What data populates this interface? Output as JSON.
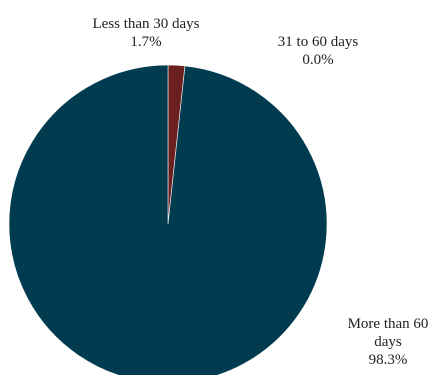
{
  "chart_data": {
    "type": "pie",
    "slices": [
      {
        "label_lines": [
          "Less than 30 days"
        ],
        "percent_label": "1.7%",
        "value": 1.7,
        "color": "#6b1f1f"
      },
      {
        "label_lines": [
          "31 to 60 days"
        ],
        "percent_label": "0.0%",
        "value": 0.0,
        "color": "#9e9e9e"
      },
      {
        "label_lines": [
          "More than 60",
          "days"
        ],
        "percent_label": "98.3%",
        "value": 98.3,
        "color": "#003b4f"
      }
    ],
    "legend": "none"
  }
}
